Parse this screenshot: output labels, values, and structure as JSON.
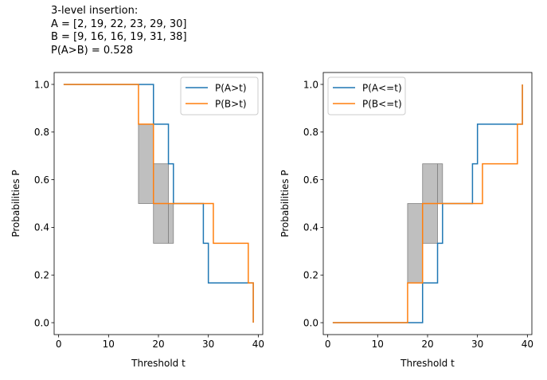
{
  "figure": {
    "title_lines": [
      "3-level insertion:",
      "A = [2, 19, 22, 23, 29, 30]",
      "B = [9, 16, 16, 19, 31, 38]",
      "P(A>B) = 0.528"
    ]
  },
  "chart_data": [
    {
      "type": "line",
      "step": "post",
      "xlabel": "Threshold t",
      "ylabel": "Probabilities P",
      "xlim": [
        -0.9,
        40.9
      ],
      "ylim": [
        -0.05,
        1.05
      ],
      "xticks": [
        0,
        10,
        20,
        30,
        40
      ],
      "yticks": [
        0.0,
        0.2,
        0.4,
        0.6,
        0.8,
        1.0
      ],
      "ytick_labels": [
        "0.0",
        "0.2",
        "0.4",
        "0.6",
        "0.8",
        "1.0"
      ],
      "legend_position": "upper right",
      "series": [
        {
          "name": "P(A>t)",
          "color": "#1f77b4",
          "x": [
            2,
            19,
            22,
            23,
            29,
            30,
            39
          ],
          "y": [
            1.0,
            0.8333,
            0.6667,
            0.5,
            0.3333,
            0.1667,
            0.0
          ],
          "x_start": 1,
          "y_start": 1.0
        },
        {
          "name": "P(B>t)",
          "color": "#ff7f0e",
          "x": [
            9,
            16,
            19,
            31,
            38,
            39
          ],
          "y": [
            1.0,
            0.8333,
            0.5,
            0.3333,
            0.1667,
            0.0
          ],
          "x_start": 1,
          "y_start": 1.0
        }
      ],
      "shaded_regions": [
        {
          "x": [
            16,
            19
          ],
          "y_low": 0.5,
          "y_high": 0.8333
        },
        {
          "x": [
            19,
            22
          ],
          "y_low": 0.3333,
          "y_high": 0.6667
        },
        {
          "x": [
            22,
            23
          ],
          "y_low": 0.3333,
          "y_high": 0.5
        }
      ],
      "shade_color": "#bfbfbf"
    },
    {
      "type": "line",
      "step": "post",
      "xlabel": "Threshold t",
      "ylabel": "Probabilities P",
      "xlim": [
        -0.9,
        40.9
      ],
      "ylim": [
        -0.05,
        1.05
      ],
      "xticks": [
        0,
        10,
        20,
        30,
        40
      ],
      "yticks": [
        0.0,
        0.2,
        0.4,
        0.6,
        0.8,
        1.0
      ],
      "ytick_labels": [
        "0.0",
        "0.2",
        "0.4",
        "0.6",
        "0.8",
        "1.0"
      ],
      "legend_position": "upper left",
      "series": [
        {
          "name": "P(A<=t)",
          "color": "#1f77b4",
          "x": [
            2,
            19,
            22,
            23,
            29,
            30,
            39
          ],
          "y": [
            0.0,
            0.1667,
            0.3333,
            0.5,
            0.6667,
            0.8333,
            1.0
          ],
          "x_start": 1,
          "y_start": 0.0
        },
        {
          "name": "P(B<=t)",
          "color": "#ff7f0e",
          "x": [
            9,
            16,
            19,
            31,
            38,
            39
          ],
          "y": [
            0.0,
            0.1667,
            0.5,
            0.6667,
            0.8333,
            1.0
          ],
          "x_start": 1,
          "y_start": 0.0
        }
      ],
      "shaded_regions": [
        {
          "x": [
            16,
            19
          ],
          "y_low": 0.1667,
          "y_high": 0.5
        },
        {
          "x": [
            19,
            22
          ],
          "y_low": 0.3333,
          "y_high": 0.6667
        },
        {
          "x": [
            22,
            23
          ],
          "y_low": 0.5,
          "y_high": 0.6667
        }
      ],
      "shade_color": "#bfbfbf"
    }
  ]
}
